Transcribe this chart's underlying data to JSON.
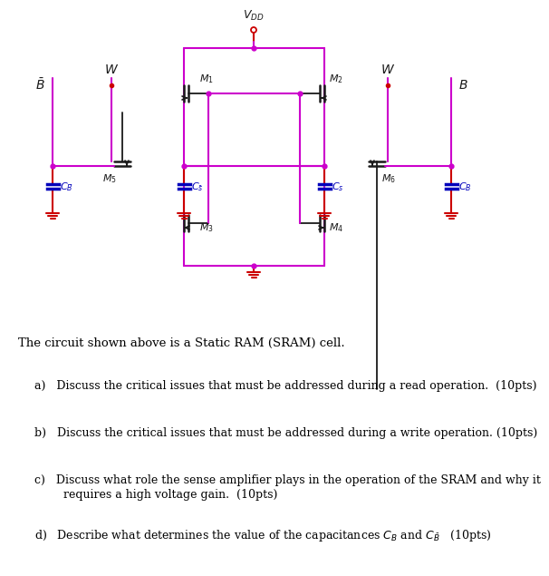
{
  "fig_width": 5.41,
  "fig_height": 6.14,
  "cc": "#cc00cc",
  "mc": "#1a1a1a",
  "bc": "#0000bb",
  "rc": "#cc0000",
  "text_intro": "The circuit shown above is a Static RAM (SRAM) cell.",
  "text_a": "a)   Discuss the critical issues that must be addressed during a read operation.  (10pts)",
  "text_b": "b)   Discuss the critical issues that must be addressed during a write operation. (10pts)",
  "text_c1": "c)   Discuss what role the sense amplifier plays in the operation of the SRAM and why it",
  "text_c2": "        requires a high voltage gain.  (10pts)",
  "text_d1": "d)   Describe what determines the value of the capacitances C",
  "text_d2": " and C",
  "text_d3": "   (10pts)"
}
